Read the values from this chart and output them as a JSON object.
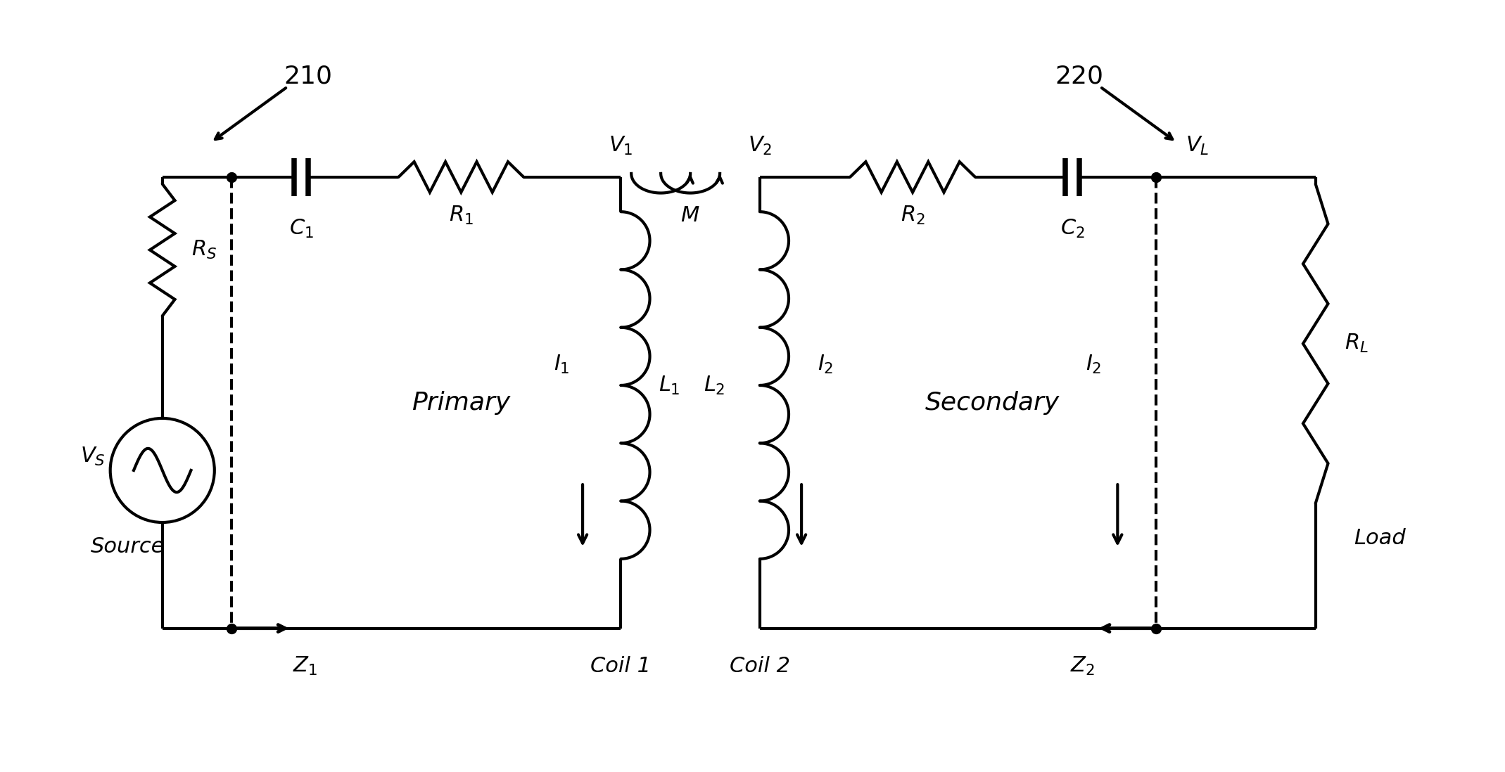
{
  "bg_color": "#ffffff",
  "line_color": "#000000",
  "line_width": 3.0,
  "fig_width": 21.39,
  "fig_height": 10.98,
  "xlim": [
    0,
    21.39
  ],
  "ylim": [
    0,
    10.98
  ],
  "top_y": 8.5,
  "bot_y": 2.0,
  "x_src": 2.2,
  "x_dot1": 3.2,
  "x_C1": 4.2,
  "x_R1": 6.5,
  "x_V1": 8.8,
  "x_V2": 10.8,
  "x_R2": 13.0,
  "x_C2": 15.3,
  "x_dot2": 16.5,
  "x_RL": 18.8,
  "rs_x": 2.2,
  "l1_x": 8.8,
  "l2_x": 10.8,
  "n_loops": 6,
  "ref_210_x": 3.8,
  "ref_210_y": 10.2,
  "ref_220_x": 17.8,
  "ref_220_y": 10.2
}
